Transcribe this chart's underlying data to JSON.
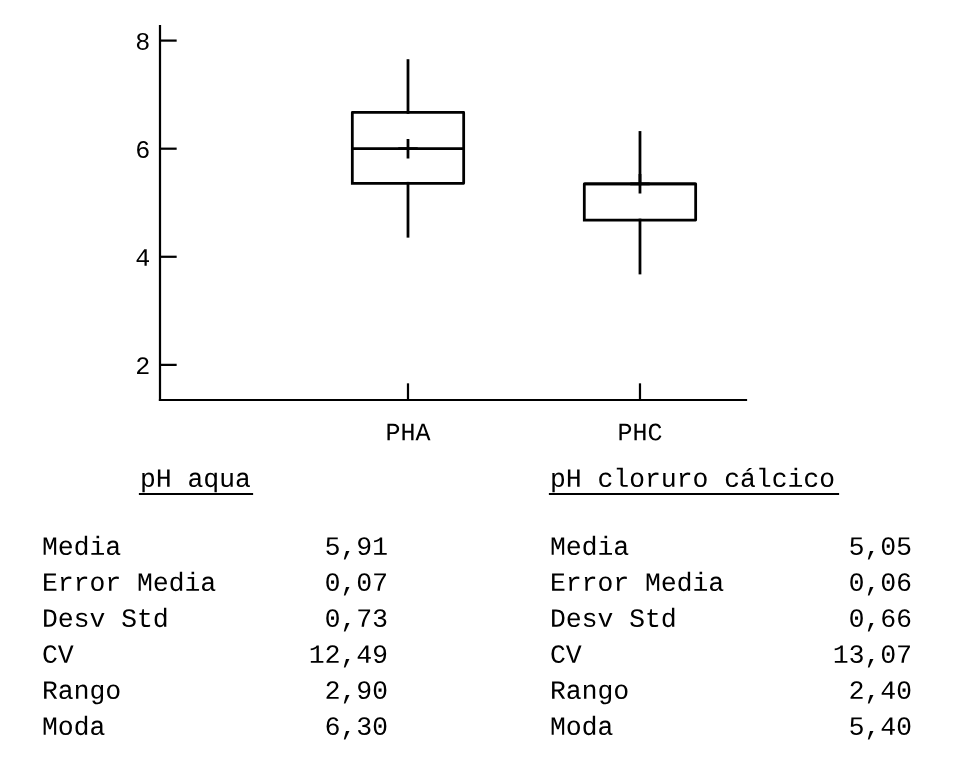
{
  "chart_data": {
    "type": "box",
    "categories": [
      "PHA",
      "PHC"
    ],
    "boxes": [
      {
        "low": 4.38,
        "q1": 5.36,
        "median": 6.0,
        "q3": 6.67,
        "high": 7.63,
        "mean": 6.0
      },
      {
        "low": 3.7,
        "q1": 4.68,
        "median": 5.35,
        "q3": 5.35,
        "high": 6.3,
        "mean": 5.35
      }
    ],
    "ylim": [
      1.35,
      8.27
    ],
    "yticks": [
      2,
      4,
      6,
      8
    ],
    "grid": false,
    "legend": false,
    "annotations": [
      "pH aqua",
      "Media",
      "5,91",
      "Error Media",
      "0,07",
      "Desv Std",
      "0,73",
      "CV",
      "12,49",
      "Rango",
      "2,90",
      "Moda",
      "6,30",
      "pH cloruro cálcico",
      "Media",
      "5,05",
      "Error Media",
      "0,06",
      "Desv Std",
      "0,66",
      "CV",
      "13,07",
      "Rango",
      "2,40",
      "Moda",
      "5,40"
    ]
  }
}
